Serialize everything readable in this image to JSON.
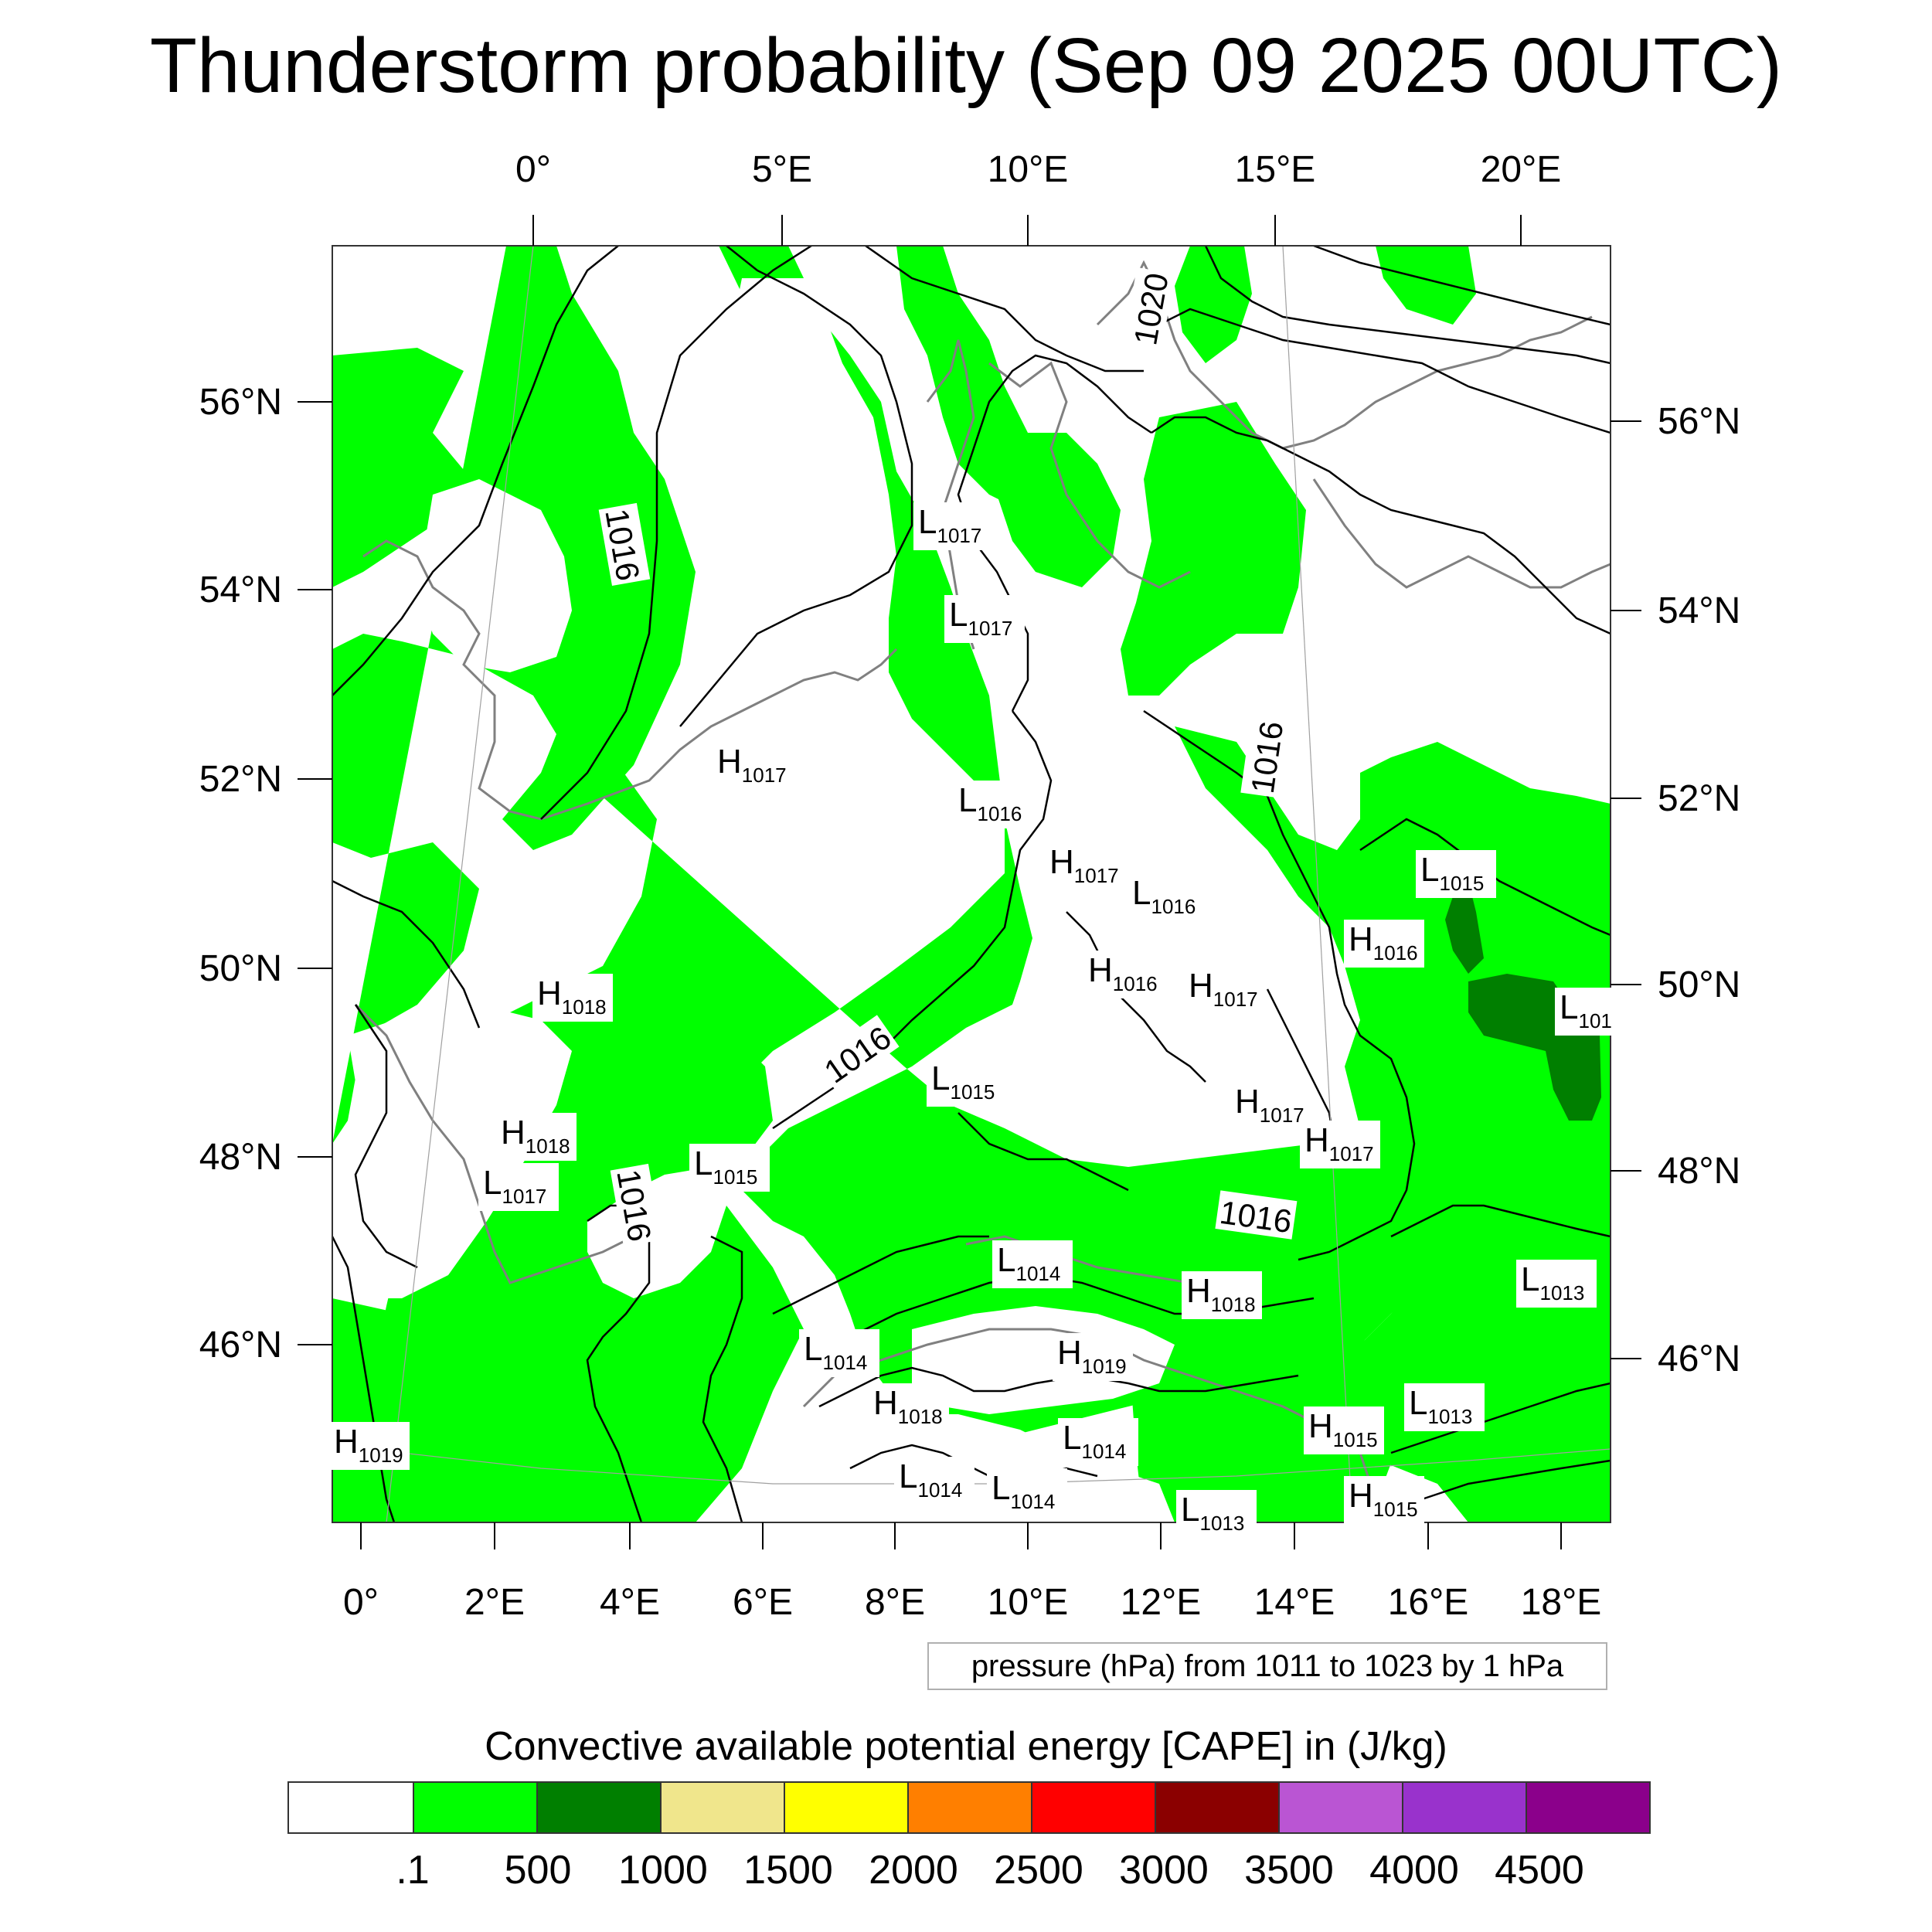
{
  "title": "Thunderstorm probability (Sep 09 2025 00UTC)",
  "top_ticks": [
    "0°",
    "5°E",
    "10°E",
    "15°E",
    "20°E"
  ],
  "bottom_ticks": [
    "0°",
    "2°E",
    "4°E",
    "6°E",
    "8°E",
    "10°E",
    "12°E",
    "14°E",
    "16°E",
    "18°E"
  ],
  "left_ticks": [
    "56°N",
    "54°N",
    "52°N",
    "50°N",
    "48°N",
    "46°N"
  ],
  "right_ticks": [
    "56°N",
    "54°N",
    "52°N",
    "50°N",
    "48°N",
    "46°N"
  ],
  "contour_labels": [
    "1016",
    "1016",
    "1016",
    "1016",
    "1016",
    "1020"
  ],
  "pressure_centers": [
    {
      "type": "L",
      "value": "1017"
    },
    {
      "type": "L",
      "value": "1017"
    },
    {
      "type": "H",
      "value": "1017"
    },
    {
      "type": "L",
      "value": "1016"
    },
    {
      "type": "H",
      "value": "1017"
    },
    {
      "type": "L",
      "value": "1016"
    },
    {
      "type": "L",
      "value": "1015"
    },
    {
      "type": "H",
      "value": "1016"
    },
    {
      "type": "H",
      "value": "1016"
    },
    {
      "type": "H",
      "value": "1017"
    },
    {
      "type": "L",
      "value": "101"
    },
    {
      "type": "H",
      "value": "1018"
    },
    {
      "type": "L",
      "value": "1015"
    },
    {
      "type": "H",
      "value": "1017"
    },
    {
      "type": "H",
      "value": "1017"
    },
    {
      "type": "H",
      "value": "1018"
    },
    {
      "type": "L",
      "value": "1017"
    },
    {
      "type": "L",
      "value": "1015"
    },
    {
      "type": "L",
      "value": "1014"
    },
    {
      "type": "H",
      "value": "1018"
    },
    {
      "type": "L",
      "value": "1013"
    },
    {
      "type": "L",
      "value": "1014"
    },
    {
      "type": "H",
      "value": "1019"
    },
    {
      "type": "H",
      "value": "1018"
    },
    {
      "type": "L",
      "value": "1014"
    },
    {
      "type": "L",
      "value": "1013"
    },
    {
      "type": "H",
      "value": "1015"
    },
    {
      "type": "H",
      "value": "1019"
    },
    {
      "type": "L",
      "value": "1014"
    },
    {
      "type": "L",
      "value": "1014"
    },
    {
      "type": "H",
      "value": "1015"
    },
    {
      "type": "L",
      "value": "1013"
    }
  ],
  "contour_info": "pressure (hPa) from 1011 to 1023 by 1 hPa",
  "colorbar": {
    "title": "Convective available potential energy [CAPE] in (J/kg)",
    "colors": [
      "#ffffff",
      "#00ff00",
      "#007f00",
      "#f0e68c",
      "#ffff00",
      "#ff7f00",
      "#ff0000",
      "#8b0000",
      "#ba55d3",
      "#9932cc",
      "#8b008b"
    ],
    "labels": [
      ".1",
      "500",
      "1000",
      "1500",
      "2000",
      "2500",
      "3000",
      "3500",
      "4000",
      "4500"
    ]
  }
}
